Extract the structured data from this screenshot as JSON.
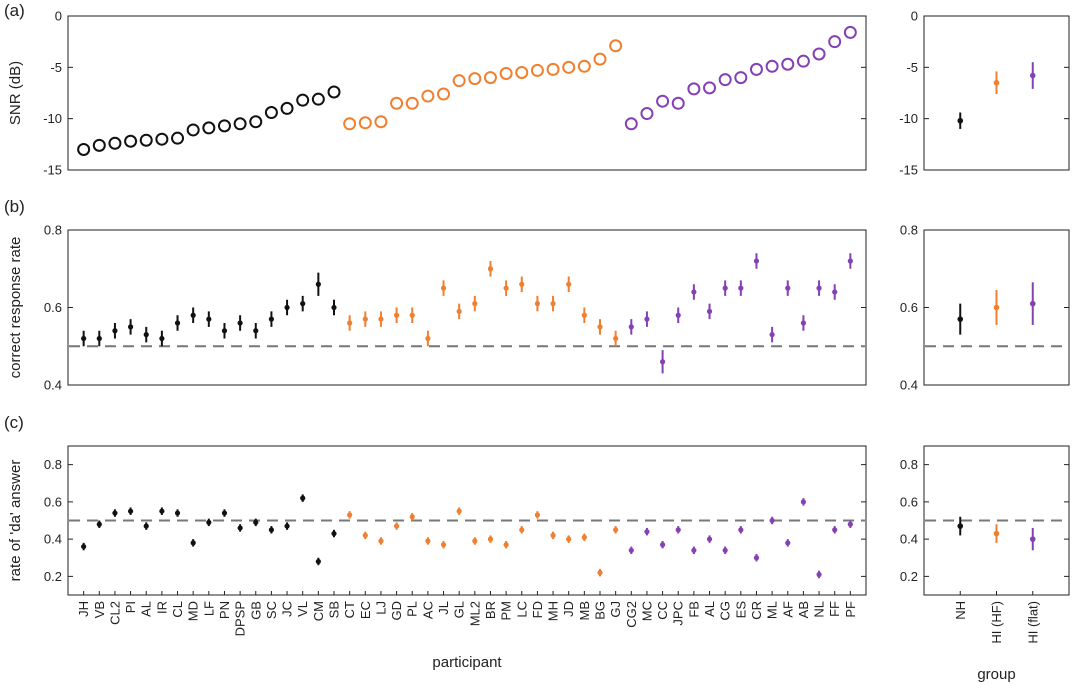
{
  "colors": {
    "NH": "#111111",
    "HI (HF)": "#f07f2f",
    "HI (flat)": "#8440b4",
    "reference_line": "#777777",
    "axis": "#222222"
  },
  "participants": [
    "JH",
    "VB",
    "CL2",
    "PI",
    "AL",
    "IR",
    "CL",
    "MD",
    "LF",
    "PN",
    "DPSP",
    "GB",
    "SC",
    "JC",
    "VL",
    "CM",
    "SB",
    "CT",
    "EC",
    "LJ",
    "GD",
    "PL",
    "AC",
    "JL",
    "GL",
    "ML2",
    "BR",
    "PM",
    "LC",
    "FD",
    "MH",
    "JD",
    "MB",
    "BG",
    "GJ",
    "CG2",
    "MC",
    "CC",
    "JPC",
    "FB",
    "AL",
    "CG",
    "ES",
    "CR",
    "ML",
    "AF",
    "AB",
    "NL",
    "FF",
    "PF"
  ],
  "participant_groups": [
    "NH",
    "NH",
    "NH",
    "NH",
    "NH",
    "NH",
    "NH",
    "NH",
    "NH",
    "NH",
    "NH",
    "NH",
    "NH",
    "NH",
    "NH",
    "NH",
    "NH",
    "HI (HF)",
    "HI (HF)",
    "HI (HF)",
    "HI (HF)",
    "HI (HF)",
    "HI (HF)",
    "HI (HF)",
    "HI (HF)",
    "HI (HF)",
    "HI (HF)",
    "HI (HF)",
    "HI (HF)",
    "HI (HF)",
    "HI (HF)",
    "HI (HF)",
    "HI (HF)",
    "HI (HF)",
    "HI (HF)",
    "HI (flat)",
    "HI (flat)",
    "HI (flat)",
    "HI (flat)",
    "HI (flat)",
    "HI (flat)",
    "HI (flat)",
    "HI (flat)",
    "HI (flat)",
    "HI (flat)",
    "HI (flat)",
    "HI (flat)",
    "HI (flat)",
    "HI (flat)",
    "HI (flat)"
  ],
  "groups": [
    "NH",
    "HI (HF)",
    "HI (flat)"
  ],
  "xlabel_participant": "participant",
  "xlabel_group": "group",
  "chart_data": [
    {
      "panel": "(a)",
      "view": "participant",
      "type": "scatter",
      "marker": "open-circle",
      "ylabel": "SNR (dB)",
      "ylim": [
        -15,
        0
      ],
      "yticks": [
        0,
        -5,
        -10,
        -15
      ],
      "values": [
        -13.0,
        -12.6,
        -12.4,
        -12.2,
        -12.1,
        -12.0,
        -11.9,
        -11.1,
        -10.9,
        -10.7,
        -10.5,
        -10.3,
        -9.4,
        -9.0,
        -8.2,
        -8.1,
        -7.4,
        -10.5,
        -10.4,
        -10.3,
        -8.5,
        -8.5,
        -7.8,
        -7.6,
        -6.3,
        -6.1,
        -6.0,
        -5.6,
        -5.5,
        -5.3,
        -5.2,
        -5.0,
        -4.9,
        -4.2,
        -2.9,
        -10.5,
        -9.5,
        -8.3,
        -8.5,
        -7.1,
        -7.0,
        -6.2,
        -6.0,
        -5.2,
        -4.9,
        -4.7,
        -4.4,
        -3.7,
        -2.5,
        -1.6
      ]
    },
    {
      "panel": "(a)",
      "view": "group",
      "type": "errorbar",
      "ylim": [
        -15,
        0
      ],
      "yticks": [
        0,
        -5,
        -10,
        -15
      ],
      "values": [
        -10.2,
        -6.5,
        -5.8
      ],
      "errors": [
        0.8,
        1.1,
        1.3
      ]
    },
    {
      "panel": "(b)",
      "view": "participant",
      "type": "errorbar",
      "ylabel": "correct response rate",
      "ylim": [
        0.4,
        0.8
      ],
      "yticks": [
        0.4,
        0.6,
        0.8
      ],
      "reference_line": 0.5,
      "values": [
        0.52,
        0.52,
        0.54,
        0.55,
        0.53,
        0.52,
        0.56,
        0.58,
        0.57,
        0.54,
        0.56,
        0.54,
        0.57,
        0.6,
        0.61,
        0.66,
        0.6,
        0.56,
        0.57,
        0.57,
        0.58,
        0.58,
        0.52,
        0.65,
        0.59,
        0.61,
        0.7,
        0.65,
        0.66,
        0.61,
        0.61,
        0.66,
        0.58,
        0.55,
        0.52,
        0.55,
        0.57,
        0.46,
        0.58,
        0.64,
        0.59,
        0.65,
        0.65,
        0.72,
        0.53,
        0.65,
        0.56,
        0.65,
        0.64,
        0.72
      ],
      "errors": [
        0.02,
        0.02,
        0.02,
        0.02,
        0.02,
        0.02,
        0.02,
        0.02,
        0.02,
        0.02,
        0.02,
        0.02,
        0.02,
        0.02,
        0.02,
        0.03,
        0.02,
        0.02,
        0.02,
        0.02,
        0.02,
        0.02,
        0.02,
        0.02,
        0.02,
        0.02,
        0.02,
        0.02,
        0.02,
        0.02,
        0.02,
        0.02,
        0.02,
        0.02,
        0.02,
        0.02,
        0.02,
        0.03,
        0.02,
        0.02,
        0.02,
        0.02,
        0.02,
        0.02,
        0.02,
        0.02,
        0.02,
        0.02,
        0.02,
        0.02
      ]
    },
    {
      "panel": "(b)",
      "view": "group",
      "type": "errorbar",
      "ylim": [
        0.4,
        0.8
      ],
      "yticks": [
        0.4,
        0.6,
        0.8
      ],
      "reference_line": 0.5,
      "values": [
        0.57,
        0.6,
        0.61
      ],
      "errors": [
        0.04,
        0.045,
        0.055
      ]
    },
    {
      "panel": "(c)",
      "view": "participant",
      "type": "errorbar",
      "ylabel": "rate of 'da' answer",
      "ylim": [
        0.1,
        0.9
      ],
      "yticks": [
        0.2,
        0.4,
        0.6,
        0.8
      ],
      "reference_line": 0.5,
      "values": [
        0.36,
        0.48,
        0.54,
        0.55,
        0.47,
        0.55,
        0.54,
        0.38,
        0.49,
        0.54,
        0.46,
        0.49,
        0.45,
        0.47,
        0.62,
        0.28,
        0.43,
        0.53,
        0.42,
        0.39,
        0.47,
        0.52,
        0.39,
        0.37,
        0.55,
        0.39,
        0.4,
        0.37,
        0.45,
        0.53,
        0.42,
        0.4,
        0.41,
        0.22,
        0.45,
        0.34,
        0.44,
        0.37,
        0.45,
        0.34,
        0.4,
        0.34,
        0.45,
        0.3,
        0.5,
        0.38,
        0.6,
        0.21,
        0.45,
        0.48
      ],
      "errors": [
        0.02,
        0.02,
        0.02,
        0.02,
        0.02,
        0.02,
        0.02,
        0.02,
        0.02,
        0.02,
        0.02,
        0.02,
        0.02,
        0.02,
        0.02,
        0.02,
        0.02,
        0.02,
        0.02,
        0.02,
        0.02,
        0.02,
        0.02,
        0.02,
        0.02,
        0.02,
        0.02,
        0.02,
        0.02,
        0.02,
        0.02,
        0.02,
        0.02,
        0.02,
        0.02,
        0.02,
        0.02,
        0.02,
        0.02,
        0.02,
        0.02,
        0.02,
        0.02,
        0.02,
        0.02,
        0.02,
        0.02,
        0.02,
        0.02,
        0.02
      ]
    },
    {
      "panel": "(c)",
      "view": "group",
      "type": "errorbar",
      "ylim": [
        0.1,
        0.9
      ],
      "yticks": [
        0.2,
        0.4,
        0.6,
        0.8
      ],
      "reference_line": 0.5,
      "values": [
        0.47,
        0.43,
        0.4
      ],
      "errors": [
        0.05,
        0.05,
        0.06
      ]
    }
  ]
}
